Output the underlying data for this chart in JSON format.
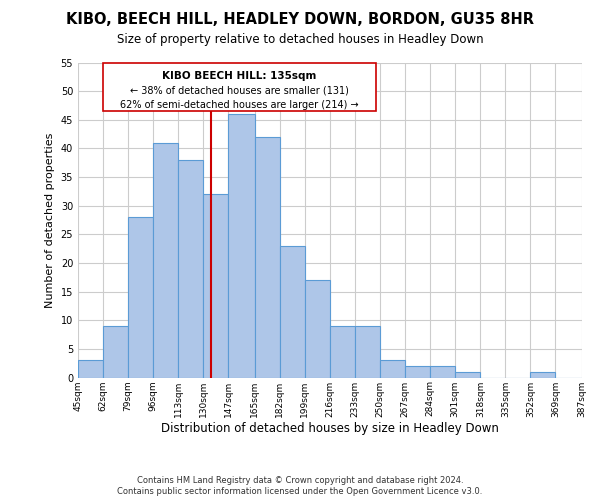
{
  "title": "KIBO, BEECH HILL, HEADLEY DOWN, BORDON, GU35 8HR",
  "subtitle": "Size of property relative to detached houses in Headley Down",
  "xlabel": "Distribution of detached houses by size in Headley Down",
  "ylabel": "Number of detached properties",
  "bin_labels": [
    "45sqm",
    "62sqm",
    "79sqm",
    "96sqm",
    "113sqm",
    "130sqm",
    "147sqm",
    "165sqm",
    "182sqm",
    "199sqm",
    "216sqm",
    "233sqm",
    "250sqm",
    "267sqm",
    "284sqm",
    "301sqm",
    "318sqm",
    "335sqm",
    "352sqm",
    "369sqm",
    "387sqm"
  ],
  "bin_edges": [
    45,
    62,
    79,
    96,
    113,
    130,
    147,
    165,
    182,
    199,
    216,
    233,
    250,
    267,
    284,
    301,
    318,
    335,
    352,
    369,
    387
  ],
  "bar_heights": [
    3,
    9,
    28,
    41,
    38,
    32,
    46,
    42,
    23,
    17,
    9,
    9,
    3,
    2,
    2,
    1,
    0,
    0,
    1,
    0
  ],
  "bar_color": "#aec6e8",
  "bar_edge_color": "#5b9bd5",
  "vline_x": 135,
  "vline_color": "#cc0000",
  "annotation_title": "KIBO BEECH HILL: 135sqm",
  "annotation_line1": "← 38% of detached houses are smaller (131)",
  "annotation_line2": "62% of semi-detached houses are larger (214) →",
  "annotation_box_edge_color": "#cc0000",
  "ylim": [
    0,
    55
  ],
  "yticks": [
    0,
    5,
    10,
    15,
    20,
    25,
    30,
    35,
    40,
    45,
    50,
    55
  ],
  "footnote1": "Contains HM Land Registry data © Crown copyright and database right 2024.",
  "footnote2": "Contains public sector information licensed under the Open Government Licence v3.0.",
  "background_color": "#ffffff",
  "grid_color": "#cccccc"
}
